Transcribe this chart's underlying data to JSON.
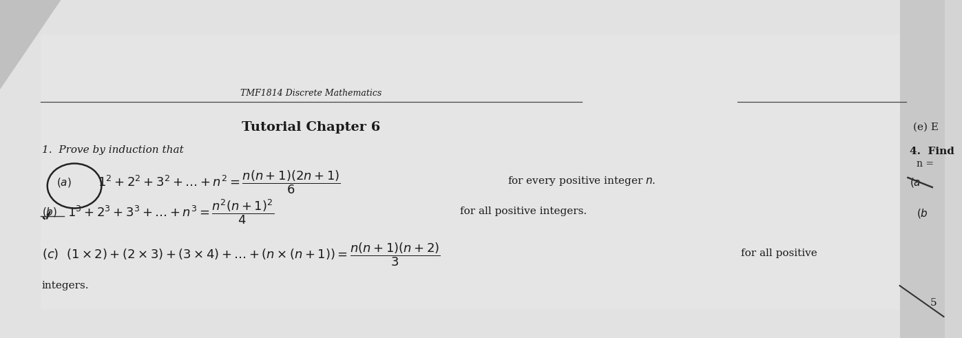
{
  "bg_color": "#d4d4d4",
  "paper_color": "#e8e8e8",
  "text_color": "#1a1a1a",
  "line_color": "#444444",
  "header_text": "TMF1814 Discrete Mathematics",
  "title_text": "Tutorial Chapter 6",
  "prove_label": "1.  Prove by induction that",
  "right_e": "(e) E",
  "right_find": "4.  Find",
  "right_n": "n =",
  "right_5": "5",
  "fig_width": 13.97,
  "fig_height": 4.91,
  "dpi": 100
}
